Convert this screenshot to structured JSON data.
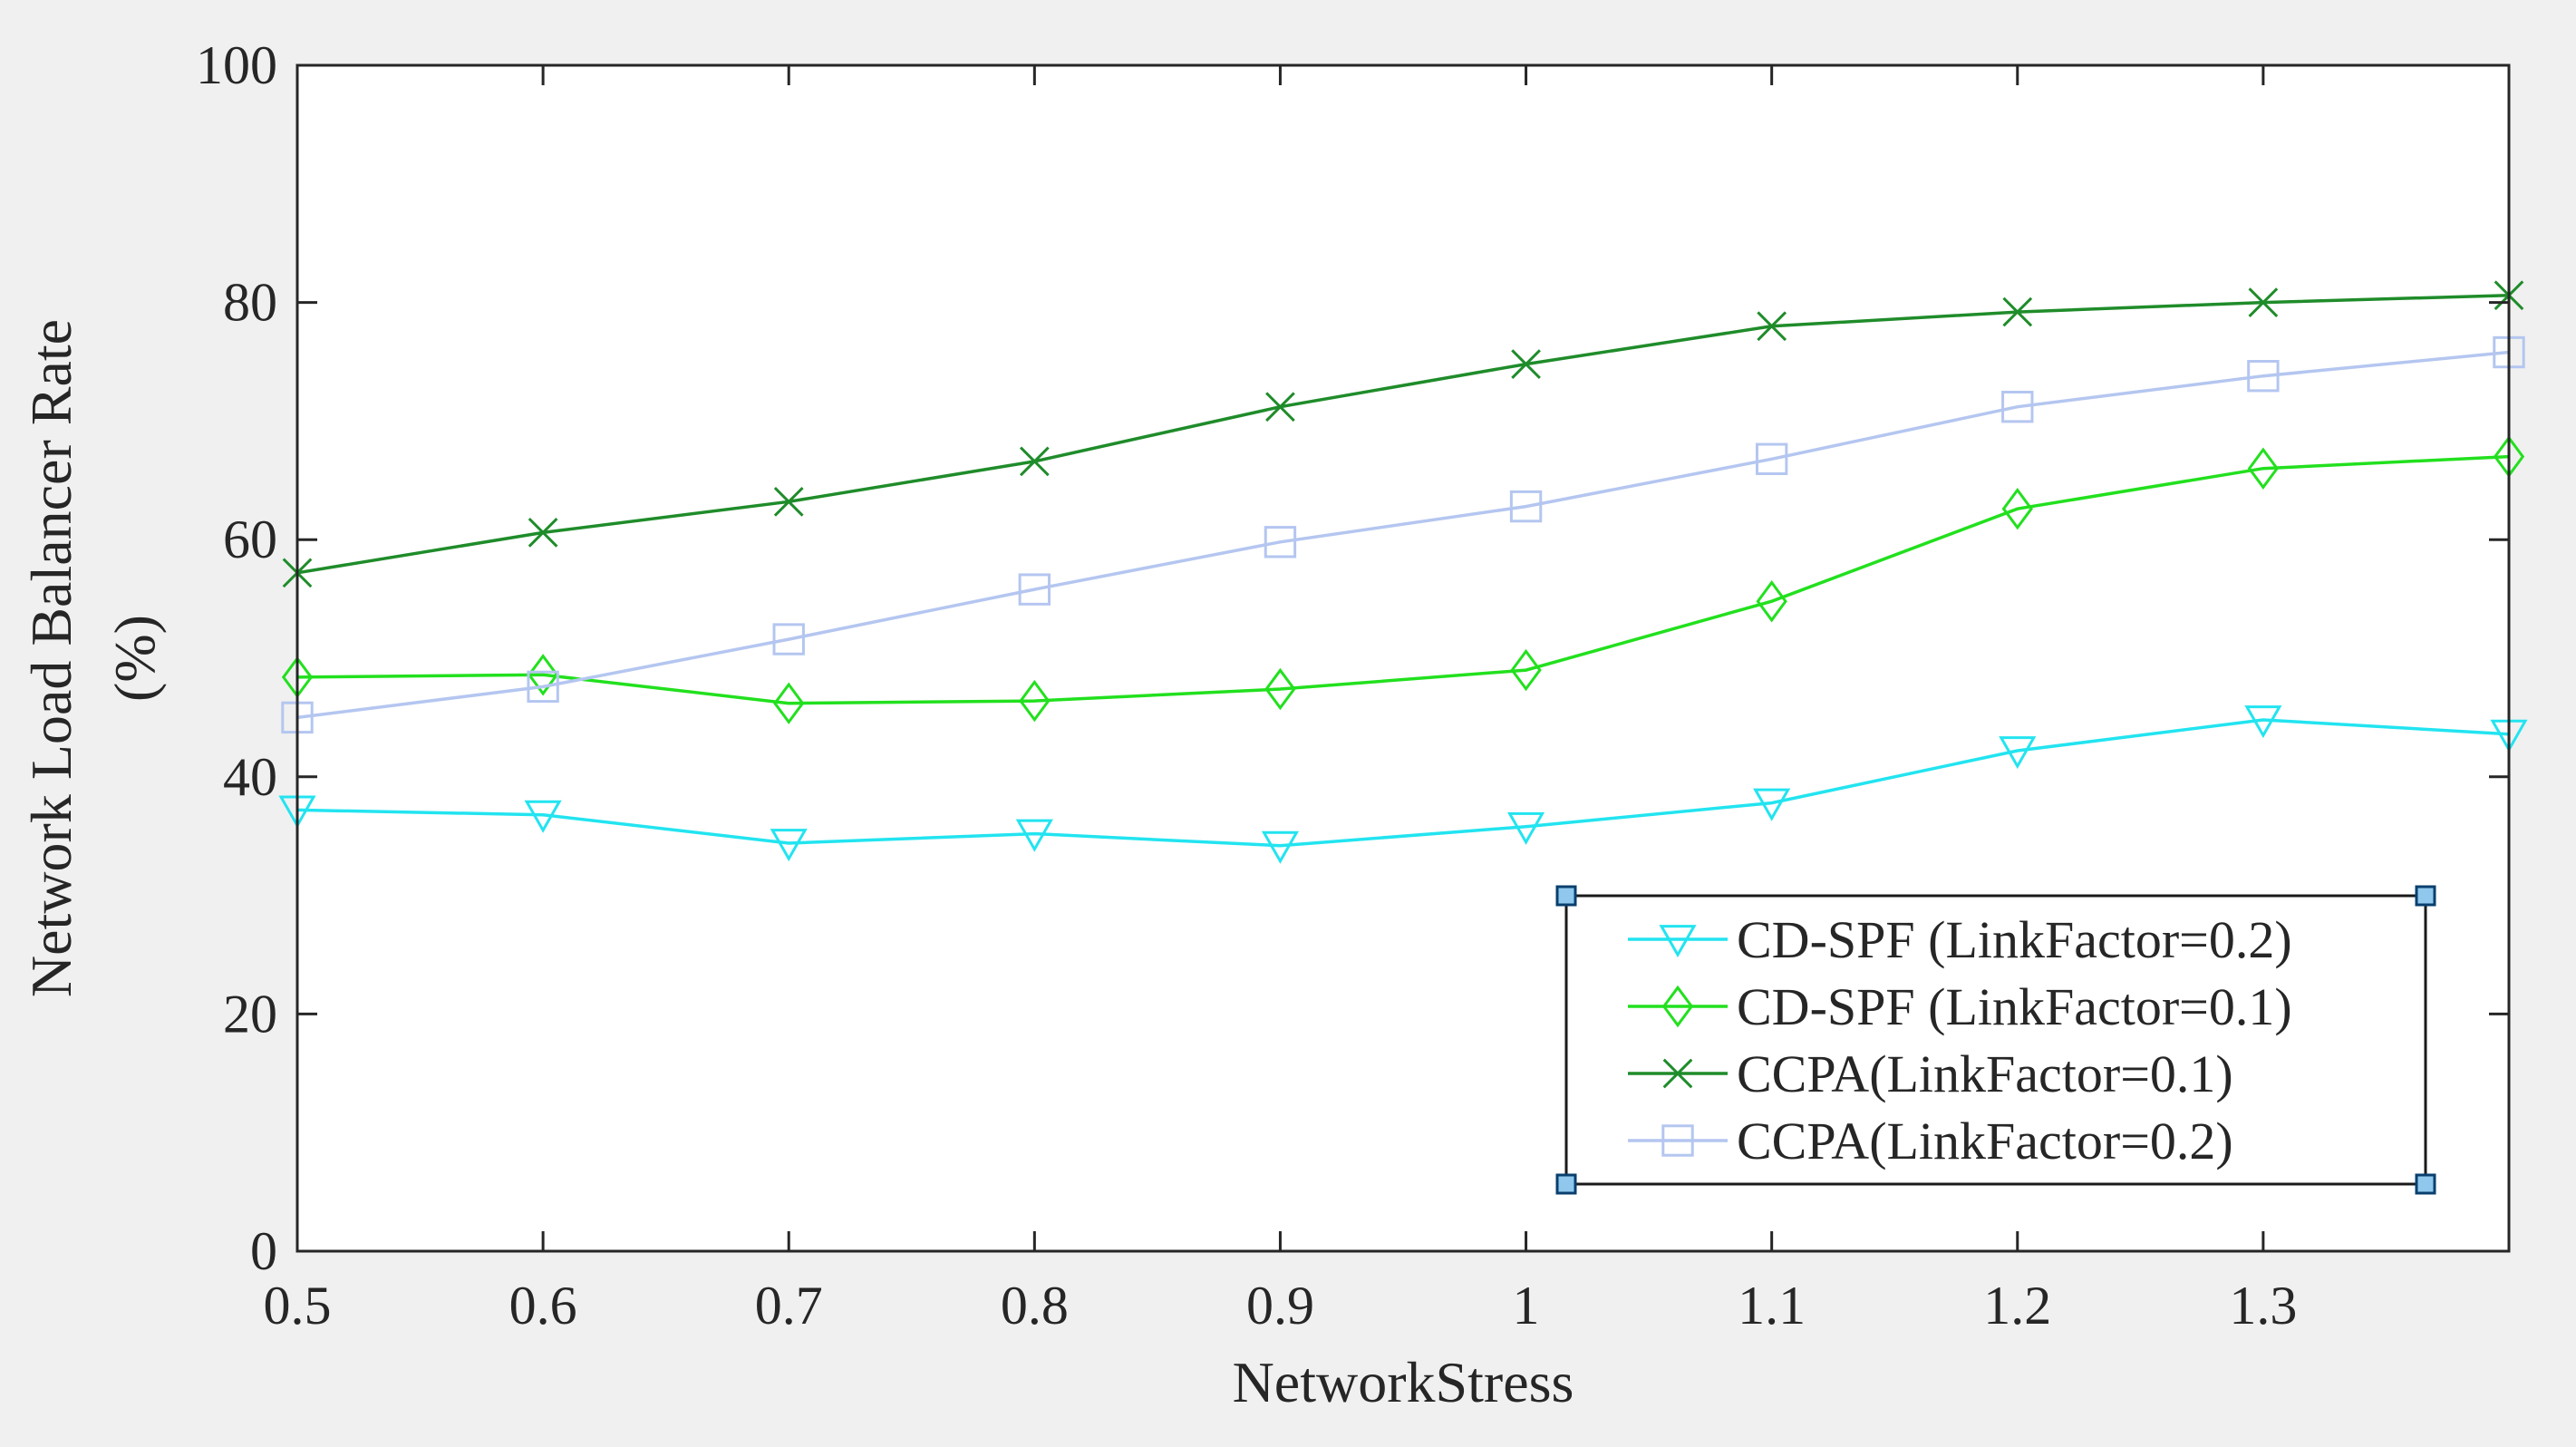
{
  "chart_data": {
    "type": "line",
    "title": "",
    "xlabel": "NetworkStress",
    "ylabel_line1": "Network Load Balancer Rate",
    "ylabel_line2": "(%)",
    "x": [
      0.5,
      0.6,
      0.7,
      0.8,
      0.9,
      1.0,
      1.1,
      1.2,
      1.3,
      1.4
    ],
    "xlim": [
      0.5,
      1.4
    ],
    "ylim": [
      0,
      100
    ],
    "xticks": [
      0.5,
      0.6,
      0.7,
      0.8,
      0.9,
      1.0,
      1.1,
      1.2,
      1.3
    ],
    "xtick_labels": [
      "0.5",
      "0.6",
      "0.7",
      "0.8",
      "0.9",
      "1",
      "1.1",
      "1.2",
      "1.3"
    ],
    "yticks": [
      0,
      20,
      40,
      60,
      80,
      100
    ],
    "ytick_labels": [
      "0",
      "20",
      "40",
      "60",
      "80",
      "100"
    ],
    "grid": false,
    "legend_position": "bottom-right",
    "series": [
      {
        "name": "CD-SPF (LinkFactor=0.2)",
        "color": "#22e4f0",
        "marker": "triangle-down",
        "values": [
          37.2,
          36.8,
          34.4,
          35.2,
          34.2,
          35.8,
          37.8,
          42.2,
          44.8,
          43.6
        ]
      },
      {
        "name": "CD-SPF (LinkFactor=0.1)",
        "color": "#22e01e",
        "marker": "diamond",
        "values": [
          48.4,
          48.6,
          46.2,
          46.4,
          47.4,
          49.0,
          54.8,
          62.6,
          66.0,
          67.0
        ]
      },
      {
        "name": "CCPA(LinkFactor=0.1)",
        "color": "#1f8c2a",
        "marker": "x",
        "values": [
          57.2,
          60.6,
          63.2,
          66.6,
          71.2,
          74.8,
          78.0,
          79.2,
          80.0,
          80.6
        ]
      },
      {
        "name": "CCPA(LinkFactor=0.2)",
        "color": "#b4c6f0",
        "marker": "square",
        "values": [
          45.0,
          47.6,
          51.6,
          55.8,
          59.8,
          62.8,
          66.8,
          71.2,
          73.8,
          75.8
        ]
      }
    ]
  }
}
